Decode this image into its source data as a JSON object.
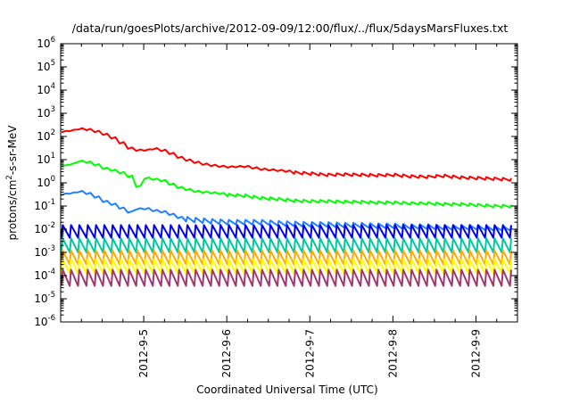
{
  "chart_data": {
    "type": "line",
    "title": "/data/run/goesPlots/archive/2012-09-09/12:00/flux/../flux/5daysMarsFluxes.txt",
    "xlabel": "Coordinated Universal Time (UTC)",
    "ylabel_parts": {
      "before_sup": "protons/cm",
      "sup": "2",
      "after_sup": "-s-sr-MeV"
    },
    "y_scale": "log",
    "ylim": [
      1e-06,
      1000000.0
    ],
    "y_ticks": [
      {
        "base": "10",
        "exp": "-6"
      },
      {
        "base": "10",
        "exp": "-5"
      },
      {
        "base": "10",
        "exp": "-4"
      },
      {
        "base": "10",
        "exp": "-3"
      },
      {
        "base": "10",
        "exp": "-2"
      },
      {
        "base": "10",
        "exp": "-1"
      },
      {
        "base": "10",
        "exp": "0"
      },
      {
        "base": "10",
        "exp": "1"
      },
      {
        "base": "10",
        "exp": "2"
      },
      {
        "base": "10",
        "exp": "3"
      },
      {
        "base": "10",
        "exp": "4"
      },
      {
        "base": "10",
        "exp": "5"
      },
      {
        "base": "10",
        "exp": "6"
      }
    ],
    "x_ticks": [
      "2012-9-5",
      "2012-9-6",
      "2012-9-7",
      "2012-9-8",
      "2012-9-9"
    ],
    "x_range_days": [
      4.0,
      9.5
    ],
    "x_tick_days": [
      5,
      6,
      7,
      8,
      9
    ],
    "grid": false,
    "legend": "none",
    "series": [
      {
        "color": "#ff0000",
        "points": [
          [
            4.05,
            150
          ],
          [
            4.2,
            200
          ],
          [
            4.35,
            180
          ],
          [
            4.5,
            120
          ],
          [
            4.65,
            70
          ],
          [
            4.8,
            30
          ],
          [
            4.95,
            22
          ],
          [
            5.1,
            28
          ],
          [
            5.25,
            22
          ],
          [
            5.4,
            12
          ],
          [
            5.55,
            8
          ],
          [
            5.7,
            6
          ],
          [
            5.85,
            5
          ],
          [
            6.0,
            4.5
          ],
          [
            6.2,
            4.8
          ],
          [
            6.4,
            3.6
          ],
          [
            6.6,
            3.2
          ],
          [
            6.8,
            2.8
          ],
          [
            7.0,
            2.5
          ],
          [
            7.2,
            2.2
          ],
          [
            7.4,
            2.3
          ],
          [
            7.6,
            2.2
          ],
          [
            7.8,
            2.1
          ],
          [
            8.0,
            2.2
          ],
          [
            8.2,
            1.9
          ],
          [
            8.4,
            1.8
          ],
          [
            8.6,
            2.0
          ],
          [
            8.8,
            1.7
          ],
          [
            9.0,
            1.6
          ],
          [
            9.2,
            1.5
          ],
          [
            9.4,
            1.4
          ],
          [
            9.5,
            1.3
          ]
        ],
        "spike_period": 0.1,
        "spike_factor": 1.3,
        "spike_start": 6.8
      },
      {
        "color": "#00ff00",
        "points": [
          [
            4.05,
            5
          ],
          [
            4.2,
            8
          ],
          [
            4.35,
            7
          ],
          [
            4.5,
            4
          ],
          [
            4.65,
            3
          ],
          [
            4.8,
            2
          ],
          [
            4.9,
            0.6
          ],
          [
            5.0,
            1.5
          ],
          [
            5.2,
            1.2
          ],
          [
            5.4,
            0.6
          ],
          [
            5.6,
            0.4
          ],
          [
            5.8,
            0.35
          ],
          [
            6.0,
            0.3
          ],
          [
            6.2,
            0.28
          ],
          [
            6.4,
            0.22
          ],
          [
            6.6,
            0.2
          ],
          [
            6.8,
            0.17
          ],
          [
            7.0,
            0.16
          ],
          [
            7.2,
            0.16
          ],
          [
            7.4,
            0.15
          ],
          [
            7.6,
            0.15
          ],
          [
            7.8,
            0.14
          ],
          [
            8.0,
            0.14
          ],
          [
            8.2,
            0.13
          ],
          [
            8.4,
            0.13
          ],
          [
            8.6,
            0.12
          ],
          [
            8.8,
            0.12
          ],
          [
            9.0,
            0.11
          ],
          [
            9.2,
            0.1
          ],
          [
            9.4,
            0.1
          ],
          [
            9.5,
            0.09
          ]
        ],
        "spike_period": 0.1,
        "spike_factor": 1.3,
        "spike_start": 6.0
      },
      {
        "color": "#2080ff",
        "points": [
          [
            4.05,
            0.3
          ],
          [
            4.2,
            0.4
          ],
          [
            4.35,
            0.3
          ],
          [
            4.5,
            0.15
          ],
          [
            4.65,
            0.1
          ],
          [
            4.8,
            0.05
          ],
          [
            4.95,
            0.08
          ],
          [
            5.1,
            0.06
          ],
          [
            5.25,
            0.05
          ],
          [
            5.4,
            0.03
          ],
          [
            5.6,
            0.025
          ],
          [
            5.8,
            0.022
          ],
          [
            6.0,
            0.02
          ],
          [
            6.2,
            0.02
          ],
          [
            6.4,
            0.02
          ],
          [
            6.6,
            0.018
          ],
          [
            6.8,
            0.017
          ],
          [
            7.0,
            0.016
          ],
          [
            7.2,
            0.016
          ],
          [
            7.4,
            0.015
          ],
          [
            7.6,
            0.015
          ],
          [
            7.8,
            0.014
          ],
          [
            8.0,
            0.014
          ],
          [
            8.2,
            0.013
          ],
          [
            8.4,
            0.013
          ],
          [
            8.6,
            0.012
          ],
          [
            8.8,
            0.012
          ],
          [
            9.0,
            0.012
          ],
          [
            9.2,
            0.011
          ],
          [
            9.4,
            0.011
          ],
          [
            9.5,
            0.01
          ]
        ],
        "spike_period": 0.1,
        "spike_factor": 1.6,
        "spike_start": 5.5
      },
      {
        "color": "#0000ee",
        "points": [
          [
            4.0,
            0.008
          ],
          [
            9.5,
            0.008
          ]
        ],
        "spike_period": 0.1,
        "spike_factor": 3.5
      },
      {
        "color": "#00c8a0",
        "points": [
          [
            4.0,
            0.002
          ],
          [
            9.5,
            0.002
          ]
        ],
        "spike_period": 0.1,
        "spike_factor": 4.0
      },
      {
        "color": "#ffaa00",
        "points": [
          [
            4.0,
            0.0006
          ],
          [
            9.5,
            0.0006
          ]
        ],
        "spike_period": 0.1,
        "spike_factor": 4.0
      },
      {
        "color": "#ffff00",
        "points": [
          [
            4.0,
            0.00025
          ],
          [
            9.5,
            0.00025
          ]
        ],
        "spike_period": 0.1,
        "spike_factor": 4.0
      },
      {
        "color": "#a03870",
        "points": [
          [
            4.0,
            8e-05
          ],
          [
            9.5,
            8e-05
          ]
        ],
        "spike_period": 0.1,
        "spike_factor": 5.0
      }
    ]
  }
}
